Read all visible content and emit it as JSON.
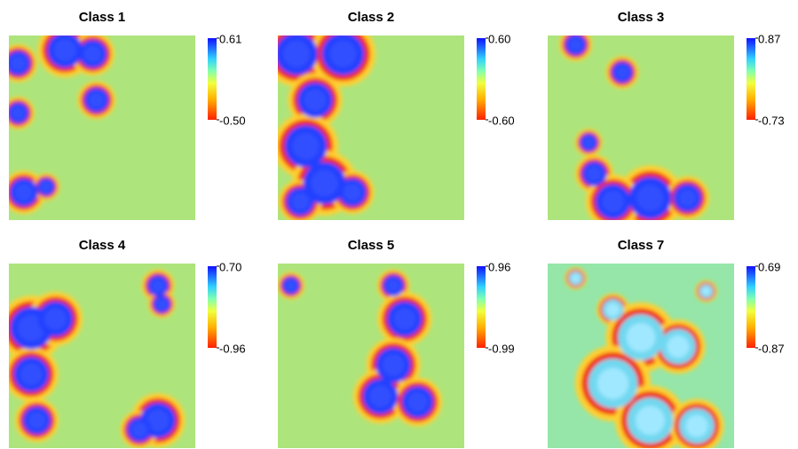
{
  "chart_data": [
    {
      "type": "heatmap",
      "title": "Class 1",
      "clim": [
        -0.5,
        0.61
      ],
      "cticks": [
        {
          "value": -0.5,
          "label": "-0.50"
        },
        0.61
      ]
    },
    {
      "type": "heatmap",
      "title": "Class 2",
      "clim": [
        -0.6,
        0.6
      ],
      "cticks": [
        {
          "value": -0.6,
          "label": "-0.60"
        },
        {
          "value": 0.6,
          "label": "0.60"
        }
      ]
    },
    {
      "type": "heatmap",
      "title": "Class 3",
      "clim": [
        -0.73,
        0.87
      ],
      "cticks": [
        -0.73,
        0.87
      ]
    },
    {
      "type": "heatmap",
      "title": "Class 4",
      "clim": [
        -0.96,
        0.7
      ],
      "cticks": [
        -0.96,
        {
          "value": 0.7,
          "label": "0.70"
        }
      ]
    },
    {
      "type": "heatmap",
      "title": "Class 5",
      "clim": [
        -0.99,
        0.96
      ],
      "cticks": [
        -0.99,
        0.96
      ]
    },
    {
      "type": "heatmap",
      "title": "Class 7",
      "clim": [
        -0.87,
        0.69
      ],
      "cticks": [
        -0.87,
        0.69
      ]
    }
  ]
}
